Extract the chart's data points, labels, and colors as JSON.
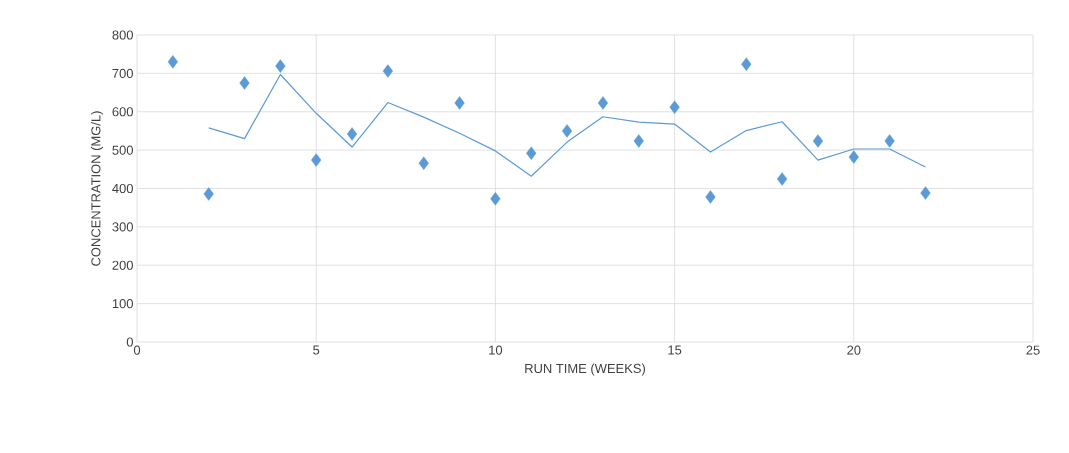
{
  "chart_data": {
    "type": "scatter",
    "xlabel": "RUN TIME (WEEKS)",
    "ylabel": "CONCENTRATION (MG/L)",
    "xlim": [
      0,
      25
    ],
    "xticks": [
      0,
      5,
      10,
      15,
      20,
      25
    ],
    "ylim": [
      0,
      800
    ],
    "yticks": [
      0,
      100,
      200,
      300,
      400,
      500,
      600,
      700,
      800
    ],
    "grid": true,
    "series": [
      {
        "marker": "diamond",
        "color": "#5b9bd5",
        "x": [
          1,
          2,
          3,
          4,
          5,
          6,
          7,
          8,
          9,
          10,
          11,
          12,
          13,
          14,
          15,
          16,
          17,
          18,
          19,
          20,
          21,
          22
        ],
        "values": [
          730,
          386,
          675,
          719,
          474,
          542,
          706,
          466,
          623,
          373,
          492,
          550,
          623,
          524,
          612,
          378,
          724,
          425,
          524,
          482,
          524,
          388
        ]
      },
      {
        "type": "line",
        "marker": "none",
        "line_style": "solid",
        "color": "#5b9bd5",
        "x": [
          2,
          3,
          4,
          5,
          6,
          7,
          8,
          9,
          10,
          11,
          12,
          13,
          14,
          15,
          16,
          17,
          18,
          19,
          20,
          21,
          22
        ],
        "values": [
          558,
          530,
          697,
          596,
          508,
          624,
          586,
          544,
          498,
          432,
          521,
          587,
          573,
          568,
          495,
          551,
          574,
          474,
          503,
          503,
          456
        ]
      }
    ]
  }
}
